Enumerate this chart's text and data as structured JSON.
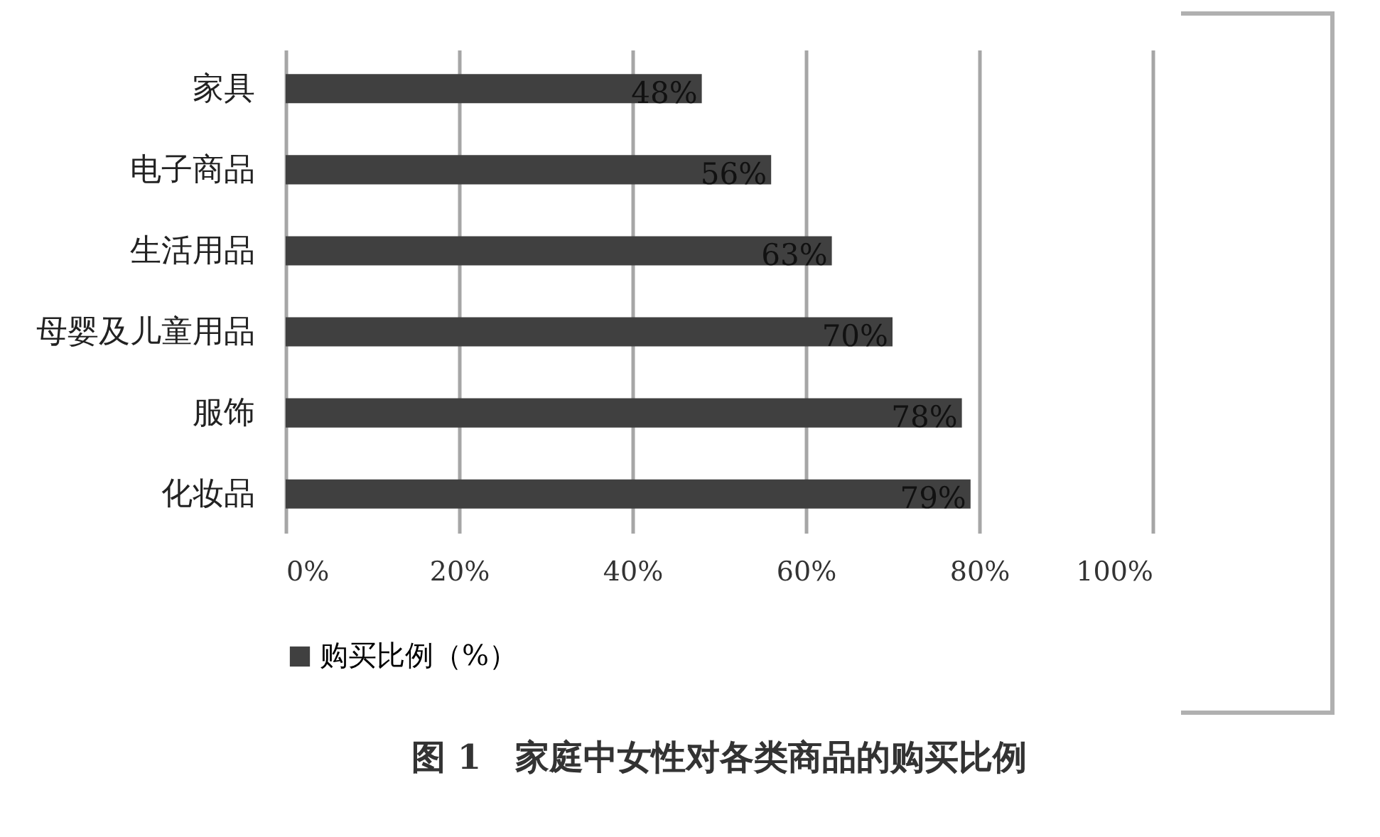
{
  "chart_data": {
    "type": "bar",
    "orientation": "horizontal",
    "title": "图 1　家庭中女性对各类商品的购买比例",
    "categories": [
      "家具",
      "电子商品",
      "生活用品",
      "母婴及儿童用品",
      "服饰",
      "化妆品"
    ],
    "series": [
      {
        "name": "购买比例（%）",
        "color": "#404040",
        "values": [
          48,
          56,
          63,
          70,
          78,
          79
        ],
        "value_labels": [
          "48%",
          "56%",
          "63%",
          "70%",
          "78%",
          "79%"
        ]
      }
    ],
    "xlim": [
      0,
      100
    ],
    "xticks": [
      {
        "value": 0,
        "label": "0%"
      },
      {
        "value": 20,
        "label": "20%"
      },
      {
        "value": 40,
        "label": "40%"
      },
      {
        "value": 60,
        "label": "60%"
      },
      {
        "value": 80,
        "label": "80%"
      },
      {
        "value": 100,
        "label": "100%"
      }
    ],
    "grid": "x",
    "legend": "bottom"
  }
}
